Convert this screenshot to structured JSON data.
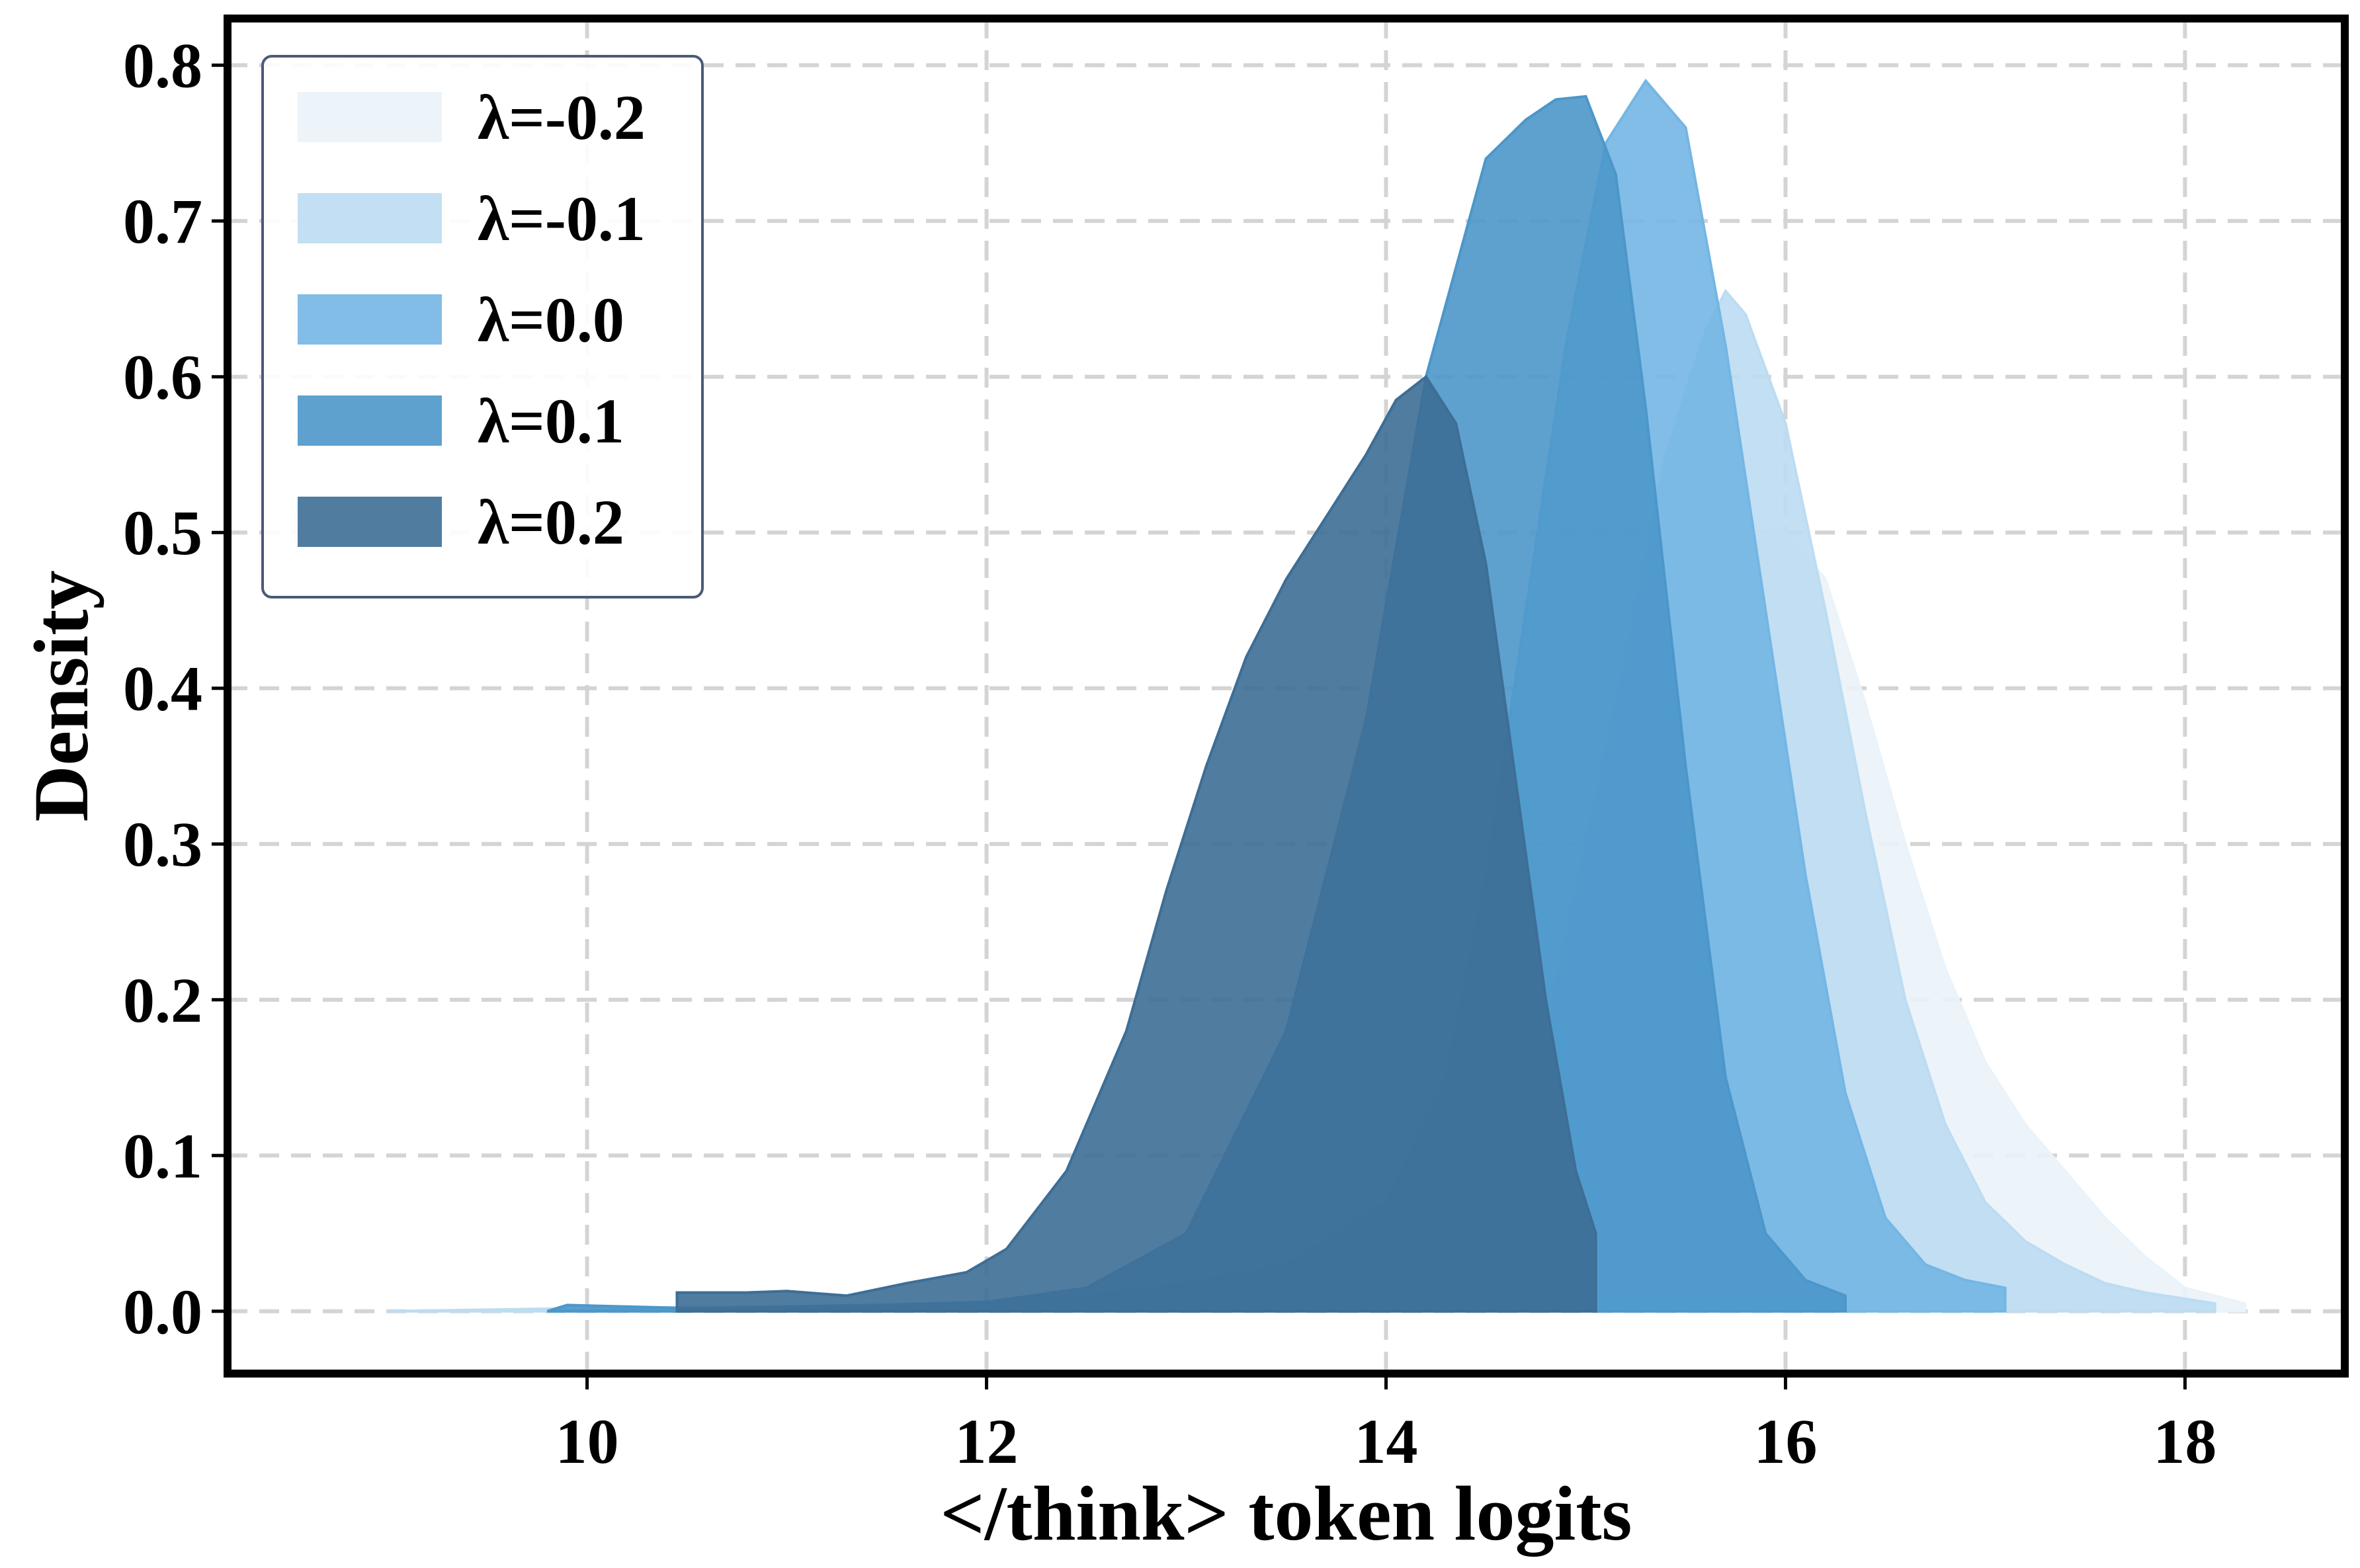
{
  "chart_data": {
    "type": "area",
    "title": "",
    "xlabel": "</think> token logits",
    "ylabel": "Density",
    "xlim": [
      8.2,
      18.8
    ],
    "ylim": [
      -0.04,
      0.83
    ],
    "xticks": [
      10,
      12,
      14,
      16,
      18
    ],
    "xtick_labels": [
      "10",
      "12",
      "14",
      "16",
      "18"
    ],
    "yticks": [
      0.0,
      0.1,
      0.2,
      0.3,
      0.4,
      0.5,
      0.6,
      0.7,
      0.8
    ],
    "ytick_labels": [
      "0.0",
      "0.1",
      "0.2",
      "0.3",
      "0.4",
      "0.5",
      "0.6",
      "0.7",
      "0.8"
    ],
    "grid": true,
    "legend_position": "top-left",
    "series": [
      {
        "name": "λ=-0.2",
        "color": "#eaf3f9",
        "points": [
          [
            9.0,
            0.0
          ],
          [
            10.0,
            0.001
          ],
          [
            11.0,
            0.002
          ],
          [
            12.0,
            0.006
          ],
          [
            12.5,
            0.01
          ],
          [
            13.0,
            0.02
          ],
          [
            13.5,
            0.03
          ],
          [
            14.0,
            0.05
          ],
          [
            14.5,
            0.1
          ],
          [
            15.0,
            0.2
          ],
          [
            15.3,
            0.3
          ],
          [
            15.6,
            0.42
          ],
          [
            15.8,
            0.5
          ],
          [
            16.0,
            0.5
          ],
          [
            16.2,
            0.47
          ],
          [
            16.4,
            0.39
          ],
          [
            16.6,
            0.3
          ],
          [
            16.8,
            0.22
          ],
          [
            17.0,
            0.16
          ],
          [
            17.2,
            0.12
          ],
          [
            17.4,
            0.09
          ],
          [
            17.6,
            0.06
          ],
          [
            17.8,
            0.035
          ],
          [
            18.0,
            0.015
          ],
          [
            18.3,
            0.005
          ],
          [
            18.3,
            0.0
          ]
        ]
      },
      {
        "name": "λ=-0.1",
        "color": "#bddcf2",
        "points": [
          [
            9.0,
            0.0
          ],
          [
            10.0,
            0.002
          ],
          [
            11.0,
            0.003
          ],
          [
            12.0,
            0.006
          ],
          [
            12.5,
            0.01
          ],
          [
            13.0,
            0.018
          ],
          [
            13.5,
            0.03
          ],
          [
            14.0,
            0.05
          ],
          [
            14.5,
            0.1
          ],
          [
            14.8,
            0.18
          ],
          [
            15.0,
            0.3
          ],
          [
            15.2,
            0.42
          ],
          [
            15.4,
            0.55
          ],
          [
            15.6,
            0.63
          ],
          [
            15.7,
            0.655
          ],
          [
            15.8,
            0.64
          ],
          [
            16.0,
            0.57
          ],
          [
            16.2,
            0.45
          ],
          [
            16.4,
            0.32
          ],
          [
            16.6,
            0.2
          ],
          [
            16.8,
            0.12
          ],
          [
            17.0,
            0.07
          ],
          [
            17.2,
            0.045
          ],
          [
            17.4,
            0.03
          ],
          [
            17.6,
            0.018
          ],
          [
            17.8,
            0.012
          ],
          [
            18.0,
            0.008
          ],
          [
            18.15,
            0.005
          ],
          [
            18.15,
            0.0
          ]
        ]
      },
      {
        "name": "λ=0.0",
        "color": "#74b6e4",
        "points": [
          [
            9.8,
            0.0
          ],
          [
            10.5,
            0.002
          ],
          [
            11.5,
            0.003
          ],
          [
            12.0,
            0.005
          ],
          [
            12.5,
            0.01
          ],
          [
            13.0,
            0.018
          ],
          [
            13.5,
            0.03
          ],
          [
            14.0,
            0.07
          ],
          [
            14.3,
            0.15
          ],
          [
            14.5,
            0.28
          ],
          [
            14.7,
            0.45
          ],
          [
            14.9,
            0.62
          ],
          [
            15.1,
            0.75
          ],
          [
            15.3,
            0.79
          ],
          [
            15.5,
            0.76
          ],
          [
            15.7,
            0.62
          ],
          [
            15.9,
            0.45
          ],
          [
            16.1,
            0.28
          ],
          [
            16.3,
            0.14
          ],
          [
            16.5,
            0.06
          ],
          [
            16.7,
            0.03
          ],
          [
            16.9,
            0.02
          ],
          [
            17.1,
            0.015
          ],
          [
            17.1,
            0.0
          ]
        ]
      },
      {
        "name": "λ=0.1",
        "color": "#4c97ca",
        "points": [
          [
            9.8,
            0.0
          ],
          [
            9.9,
            0.004
          ],
          [
            10.5,
            0.002
          ],
          [
            11.5,
            0.004
          ],
          [
            12.0,
            0.006
          ],
          [
            12.5,
            0.015
          ],
          [
            13.0,
            0.05
          ],
          [
            13.5,
            0.18
          ],
          [
            13.9,
            0.38
          ],
          [
            14.2,
            0.6
          ],
          [
            14.5,
            0.74
          ],
          [
            14.7,
            0.765
          ],
          [
            14.85,
            0.778
          ],
          [
            15.0,
            0.78
          ],
          [
            15.15,
            0.73
          ],
          [
            15.3,
            0.58
          ],
          [
            15.5,
            0.35
          ],
          [
            15.7,
            0.15
          ],
          [
            15.9,
            0.05
          ],
          [
            16.1,
            0.02
          ],
          [
            16.3,
            0.01
          ],
          [
            16.3,
            0.0
          ]
        ]
      },
      {
        "name": "λ=0.2",
        "color": "#3d6e96",
        "points": [
          [
            10.45,
            0.0
          ],
          [
            10.45,
            0.012
          ],
          [
            10.8,
            0.012
          ],
          [
            11.0,
            0.013
          ],
          [
            11.3,
            0.01
          ],
          [
            11.6,
            0.018
          ],
          [
            11.9,
            0.025
          ],
          [
            12.1,
            0.04
          ],
          [
            12.4,
            0.09
          ],
          [
            12.7,
            0.18
          ],
          [
            12.9,
            0.27
          ],
          [
            13.1,
            0.35
          ],
          [
            13.3,
            0.42
          ],
          [
            13.5,
            0.47
          ],
          [
            13.7,
            0.51
          ],
          [
            13.9,
            0.55
          ],
          [
            14.05,
            0.585
          ],
          [
            14.2,
            0.6
          ],
          [
            14.35,
            0.57
          ],
          [
            14.5,
            0.48
          ],
          [
            14.65,
            0.34
          ],
          [
            14.8,
            0.2
          ],
          [
            14.95,
            0.09
          ],
          [
            15.05,
            0.05
          ],
          [
            15.05,
            0.0
          ]
        ]
      }
    ]
  }
}
